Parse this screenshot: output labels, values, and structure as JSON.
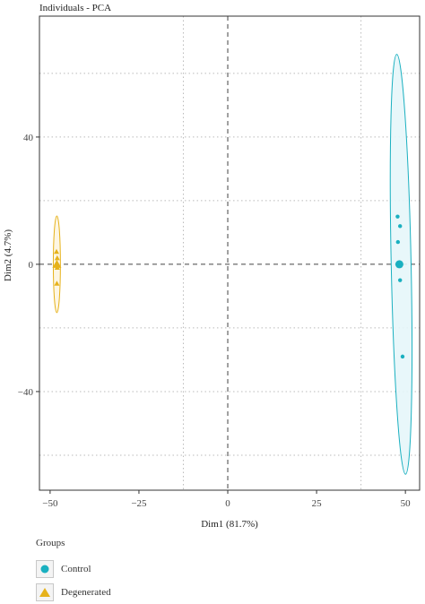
{
  "chart_data": {
    "type": "scatter",
    "title": "Individuals - PCA",
    "xlabel": "Dim1 (81.7%)",
    "ylabel": "Dim2 (4.7%)",
    "xlim": [
      -53,
      54
    ],
    "ylim": [
      -71,
      78
    ],
    "xticks": [
      -50,
      -25,
      0,
      25,
      50
    ],
    "xtick_labels": [
      "−50",
      "−25",
      "0",
      "25",
      "50"
    ],
    "yticks": [
      -40,
      0,
      40
    ],
    "ytick_labels": [
      "−40",
      "0",
      "40"
    ],
    "grid_lines_x": [
      -12.5,
      0,
      37.5
    ],
    "grid_lines_y": [
      -60,
      -20,
      20,
      60
    ],
    "grid": "dotted",
    "legend_placement": "bottom-left",
    "series": [
      {
        "name": "Control",
        "marker": "circle",
        "color": "#1ab0c0",
        "fill": "#e6f6f9",
        "points": [
          {
            "x": 47.8,
            "y": 15
          },
          {
            "x": 48.5,
            "y": 12
          },
          {
            "x": 47.9,
            "y": 7
          },
          {
            "x": 48.5,
            "y": -5
          },
          {
            "x": 49.2,
            "y": -29
          }
        ],
        "centroid": {
          "x": 48.3,
          "y": 0
        },
        "ellipse": {
          "cx": 48.8,
          "cy": 0,
          "rx": 2.8,
          "ry": 66,
          "angle_deg": -1.2
        }
      },
      {
        "name": "Degenerated",
        "marker": "triangle",
        "color": "#e6b21b",
        "fill": "#fdf5e0",
        "points": [
          {
            "x": -48.2,
            "y": 4
          },
          {
            "x": -48.0,
            "y": 2
          },
          {
            "x": -47.9,
            "y": 0
          },
          {
            "x": -48.0,
            "y": -1
          },
          {
            "x": -48.1,
            "y": -6
          }
        ],
        "centroid": {
          "x": -48.1,
          "y": 0
        },
        "ellipse": {
          "cx": -48.1,
          "cy": 0,
          "rx": 1.0,
          "ry": 15.2,
          "angle_deg": 0
        }
      }
    ]
  },
  "legend": {
    "title": "Groups",
    "items": [
      {
        "label": "Control",
        "color": "#1ab0c0",
        "marker": "circle"
      },
      {
        "label": "Degenerated",
        "color": "#e6b21b",
        "marker": "triangle"
      }
    ]
  }
}
